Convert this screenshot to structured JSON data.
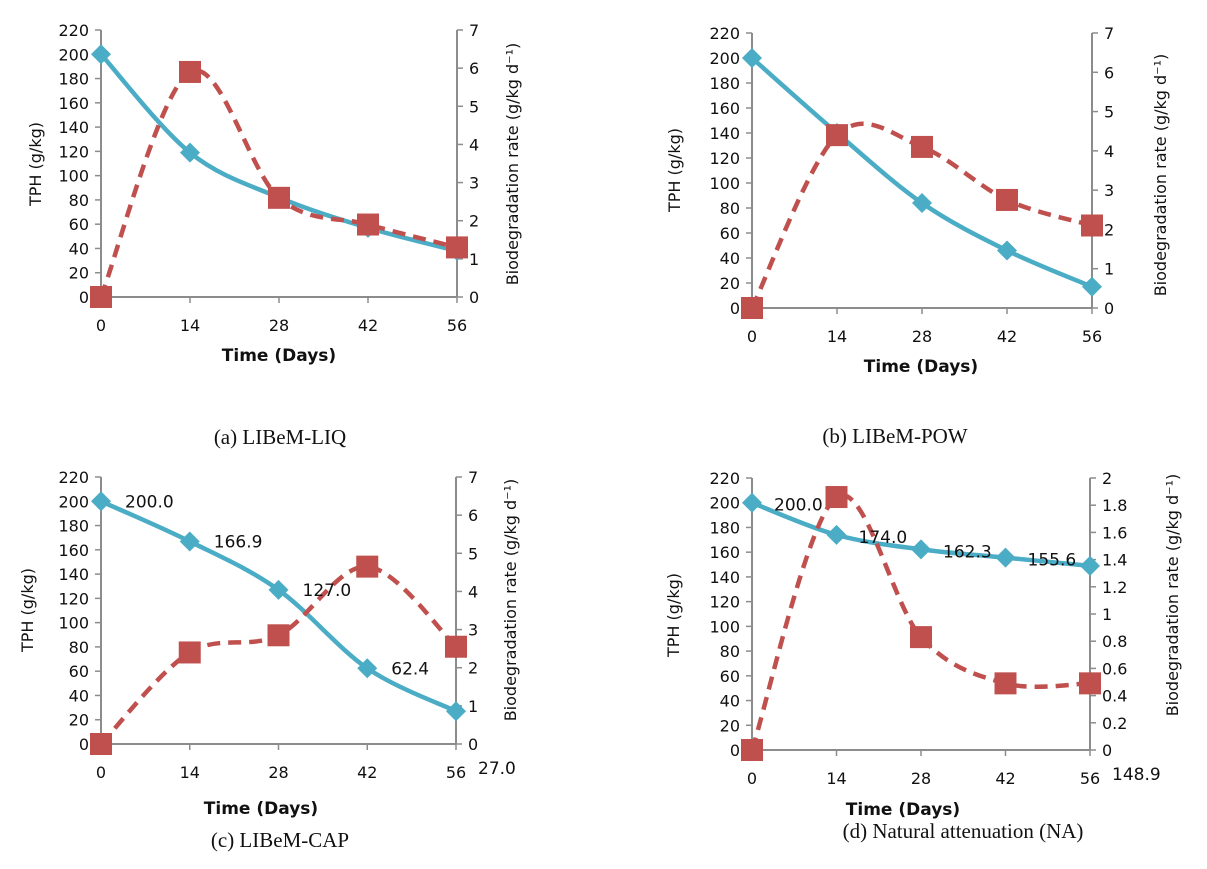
{
  "colors": {
    "tph": "#4bacc6",
    "rate": "#c0504d",
    "axis": "#8c8c8c"
  },
  "chart_data": [
    {
      "type": "line",
      "caption": "(a)  LIBeM-LIQ",
      "xlabel": "Time (Days)",
      "ylabel": "TPH (g/kg)",
      "y2label": "Biodegradation rate (g/kg d⁻¹)",
      "x": [
        0,
        14,
        28,
        42,
        56
      ],
      "ylim": [
        0,
        220
      ],
      "yticks": [
        0,
        20,
        40,
        60,
        80,
        100,
        120,
        140,
        160,
        180,
        200,
        220
      ],
      "y2lim": [
        0,
        7
      ],
      "y2ticks": [
        "0",
        "1",
        "2",
        "3",
        "4",
        "5",
        "6",
        "7"
      ],
      "series": [
        {
          "axis": "left",
          "marker": "diamond",
          "style": "solid",
          "values": [
            200,
            119,
            82,
            57,
            38
          ]
        },
        {
          "axis": "right",
          "marker": "square",
          "style": "dashed",
          "values": [
            0,
            5.9,
            2.6,
            1.9,
            1.3
          ]
        }
      ],
      "data_labels": [],
      "grid": false
    },
    {
      "type": "line",
      "caption": "(b) LIBeM-POW",
      "xlabel": "Time (Days)",
      "ylabel": "TPH (g/kg)",
      "y2label": "Biodegradation rate (g/kg d⁻¹)",
      "x": [
        0,
        14,
        28,
        42,
        56
      ],
      "ylim": [
        0,
        220
      ],
      "yticks": [
        0,
        20,
        40,
        60,
        80,
        100,
        120,
        140,
        160,
        180,
        200,
        220
      ],
      "y2lim": [
        0,
        7
      ],
      "y2ticks": [
        "0",
        "1",
        "2",
        "3",
        "4",
        "5",
        "6",
        "7"
      ],
      "series": [
        {
          "axis": "left",
          "marker": "diamond",
          "style": "solid",
          "values": [
            200,
            140,
            84,
            46,
            17
          ]
        },
        {
          "axis": "right",
          "marker": "square",
          "style": "dashed",
          "values": [
            0,
            4.4,
            4.1,
            2.75,
            2.1
          ]
        }
      ],
      "data_labels": [],
      "grid": false
    },
    {
      "type": "line",
      "caption": "(c)  LIBeM-CAP",
      "xlabel": "Time (Days)",
      "ylabel": "TPH (g/kg)",
      "y2label": "Biodegradation rate (g/kg d⁻¹)",
      "x": [
        0,
        14,
        28,
        42,
        56
      ],
      "ylim": [
        0,
        220
      ],
      "yticks": [
        0,
        20,
        40,
        60,
        80,
        100,
        120,
        140,
        160,
        180,
        200,
        220
      ],
      "y2lim": [
        0,
        7
      ],
      "y2ticks": [
        "0",
        "1",
        "2",
        "3",
        "4",
        "5",
        "6",
        "7"
      ],
      "series": [
        {
          "axis": "left",
          "marker": "diamond",
          "style": "solid",
          "values": [
            200.0,
            166.9,
            127.0,
            62.4,
            27.0
          ]
        },
        {
          "axis": "right",
          "marker": "square",
          "style": "dashed",
          "values": [
            0,
            2.4,
            2.85,
            4.65,
            2.55
          ]
        }
      ],
      "data_labels": [
        "200.0",
        "166.9",
        "127.0",
        "62.4",
        "27.0"
      ],
      "grid": false
    },
    {
      "type": "line",
      "caption": "(d) Natural attenuation (NA)",
      "xlabel": "Time (Days)",
      "ylabel": "TPH (g/kg)",
      "y2label": "Biodegradation rate (g/kg d⁻¹)",
      "x": [
        0,
        14,
        28,
        42,
        56
      ],
      "ylim": [
        0,
        220
      ],
      "yticks": [
        0,
        20,
        40,
        60,
        80,
        100,
        120,
        140,
        160,
        180,
        200,
        220
      ],
      "y2lim": [
        0,
        2
      ],
      "y2ticks": [
        "0",
        "0.2",
        "0.4",
        "0.6",
        "0.8",
        "1",
        "1.2",
        "1.4",
        "1.6",
        "1.8",
        "2"
      ],
      "series": [
        {
          "axis": "left",
          "marker": "diamond",
          "style": "solid",
          "values": [
            200.0,
            174.0,
            162.3,
            155.6,
            148.9
          ]
        },
        {
          "axis": "right",
          "marker": "square",
          "style": "dashed",
          "values": [
            0,
            1.86,
            0.83,
            0.49,
            0.49
          ]
        }
      ],
      "data_labels": [
        "200.0",
        "174.0",
        "162.3",
        "155.6",
        "148.9"
      ],
      "grid": false
    }
  ]
}
